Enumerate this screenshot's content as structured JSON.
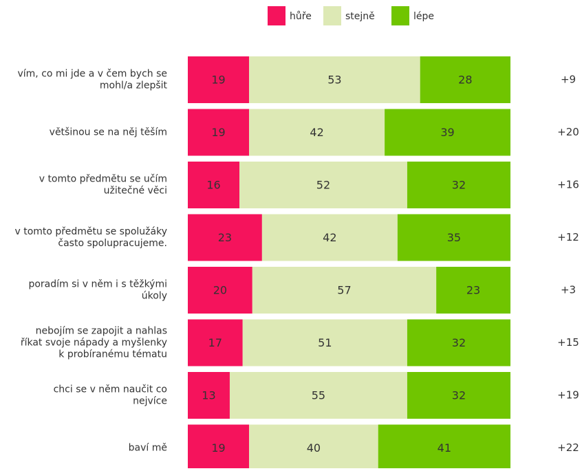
{
  "chart_data": {
    "type": "stacked-bar",
    "categories": [
      [
        "vím, co mi jde a v čem bych se",
        "mohl/a zlepšit"
      ],
      [
        "většinou se na něj těším"
      ],
      [
        "v tomto předmětu se učím",
        "užitečné věci"
      ],
      [
        "v tomto předmětu se spolužáky",
        "často spolupracujeme."
      ],
      [
        "poradím si v něm i s těžkými",
        "úkoly"
      ],
      [
        "nebojím se zapojit a nahlas",
        "říkat svoje nápady a myšlenky",
        "k probíranému tématu"
      ],
      [
        "chci se v něm naučit co",
        "nejvíce"
      ],
      [
        "baví mě"
      ]
    ],
    "series": [
      {
        "name": "hůře",
        "color": "#f5135c",
        "values": [
          19,
          19,
          16,
          23,
          20,
          17,
          13,
          19
        ]
      },
      {
        "name": "stejně",
        "color": "#dde9b5",
        "values": [
          53,
          42,
          52,
          42,
          57,
          51,
          55,
          40
        ]
      },
      {
        "name": "lépe",
        "color": "#70c500",
        "values": [
          28,
          39,
          32,
          35,
          23,
          32,
          32,
          41
        ]
      }
    ],
    "net_labels": [
      "+9",
      "+20",
      "+16",
      "+12",
      "+3",
      "+15",
      "+19",
      "+22"
    ],
    "xlim": [
      0,
      100
    ]
  }
}
